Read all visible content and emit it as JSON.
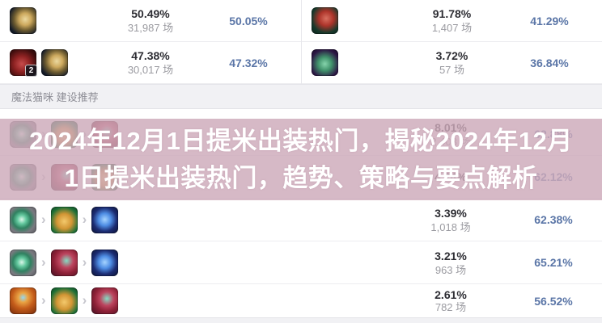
{
  "theme": {
    "accent_blue": "#5b76a7",
    "text_dark": "#2d2d33",
    "text_gray": "#9b9ba1",
    "band_bg": "#f1f1f4",
    "overlay_pink": "rgba(205,170,186,0.82)"
  },
  "glyphs": {
    "chevron": "›"
  },
  "top_section": {
    "left_rows": [
      {
        "icons": [
          "gold-item"
        ],
        "win": "50.49%",
        "games": "31,987 场",
        "rate": "50.05%"
      },
      {
        "icons": [
          "red-gem",
          "gold-item"
        ],
        "badge": "2",
        "win": "47.38%",
        "games": "30,017 场",
        "rate": "47.32%"
      }
    ],
    "right_rows": [
      {
        "icons": [
          "red-boot"
        ],
        "win": "91.78%",
        "games": "1,407 场",
        "rate": "41.29%"
      },
      {
        "icons": [
          "green-boot"
        ],
        "win": "3.72%",
        "games": "57 场",
        "rate": "36.84%"
      }
    ]
  },
  "section_header": {
    "label": "魔法猫咪 建设推荐"
  },
  "build_section": {
    "rows": [
      {
        "icons": [
          "orb-item",
          "bell-item",
          "red-teal"
        ],
        "win": "8.01%",
        "games": "2,403 场",
        "rate": "62.88%"
      },
      {
        "icons": [
          "orb-item",
          "red-teal",
          "bell-item"
        ],
        "win": "4.24%",
        "games": "",
        "rate": "62.12%"
      },
      {
        "icons": [
          "orb-item",
          "bell-item",
          "blue-swirl"
        ],
        "win": "3.39%",
        "games": "1,018 场",
        "rate": "62.38%"
      },
      {
        "icons": [
          "orb-item",
          "red-teal",
          "blue-swirl"
        ],
        "win": "3.21%",
        "games": "963 场",
        "rate": "65.21%"
      },
      {
        "icons": [
          "orange-armor",
          "bell-item",
          "red-teal"
        ],
        "win": "2.61%",
        "games": "782 场",
        "rate": "56.52%"
      }
    ]
  },
  "overlay": {
    "title_line1": "2024年12月1日提米出装热门，揭秘2024年12月",
    "title_line2": "1日提米出装热门，趋势、策略与要点解析"
  }
}
